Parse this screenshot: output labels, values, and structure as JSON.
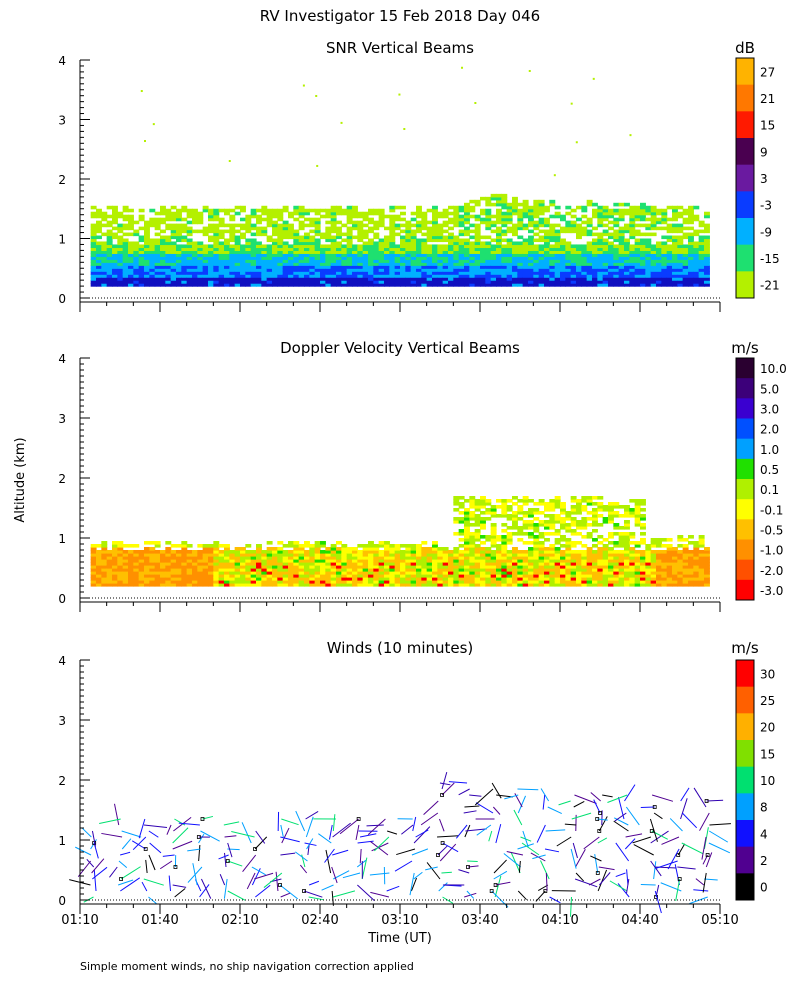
{
  "title": "RV Investigator  15 Feb 2018 Day 046",
  "footer": "Simple moment winds, no ship navigation correction applied",
  "ylabel": "Altitude (km)",
  "xlabel": "Time (UT)",
  "x_ticks": [
    "01:10",
    "01:40",
    "02:10",
    "02:40",
    "03:10",
    "03:40",
    "04:10",
    "04:40",
    "05:10"
  ],
  "y_ticks": [
    "0",
    "1",
    "2",
    "3",
    "4"
  ],
  "chart_data": [
    {
      "type": "heatmap",
      "title": "SNR Vertical Beams",
      "unit": "dB",
      "xlim_minutes": [
        0,
        240
      ],
      "ylim_km": [
        0,
        4
      ],
      "colorbar": {
        "labels": [
          "27",
          "21",
          "15",
          "9",
          "3",
          "-3",
          "-9",
          "-15",
          "-21"
        ],
        "colors": [
          "#ffb300",
          "#ff7800",
          "#ff1a00",
          "#4a0050",
          "#6a1aa0",
          "#0a3cff",
          "#00b0ff",
          "#1ee070",
          "#b4f000"
        ]
      },
      "profile": [
        {
          "t": 0,
          "top_km": 1.5
        },
        {
          "t": 90,
          "top_km": 1.5
        },
        {
          "t": 140,
          "top_km": 1.5
        },
        {
          "t": 150,
          "top_km": 1.7
        },
        {
          "t": 155,
          "top_km": 1.75
        },
        {
          "t": 170,
          "top_km": 1.6
        },
        {
          "t": 230,
          "top_km": 1.5
        }
      ]
    },
    {
      "type": "heatmap",
      "title": "Doppler Velocity Vertical Beams",
      "unit": "m/s",
      "xlim_minutes": [
        0,
        240
      ],
      "ylim_km": [
        0,
        4
      ],
      "colorbar": {
        "labels": [
          "10.0",
          "5.0",
          "3.0",
          "2.0",
          "1.0",
          "0.5",
          "0.1",
          "-0.1",
          "-0.5",
          "-1.0",
          "-2.0",
          "-3.0"
        ],
        "colors": [
          "#2a0030",
          "#3c007a",
          "#3a00d0",
          "#0050ff",
          "#00a0ff",
          "#20e000",
          "#b0f000",
          "#ffff00",
          "#ffc000",
          "#ff9000",
          "#ff5000",
          "#ff0000"
        ]
      }
    },
    {
      "type": "scatter",
      "title": "Winds (10 minutes)",
      "unit": "m/s",
      "xlim_minutes": [
        0,
        240
      ],
      "ylim_km": [
        0,
        4
      ],
      "colorbar": {
        "labels": [
          "30",
          "25",
          "20",
          "15",
          "10",
          "8",
          "4",
          "2",
          "0"
        ],
        "colors": [
          "#ff0000",
          "#ff6000",
          "#ffb000",
          "#80e000",
          "#00e070",
          "#00a0ff",
          "#1010ff",
          "#500090",
          "#000000"
        ]
      }
    }
  ]
}
